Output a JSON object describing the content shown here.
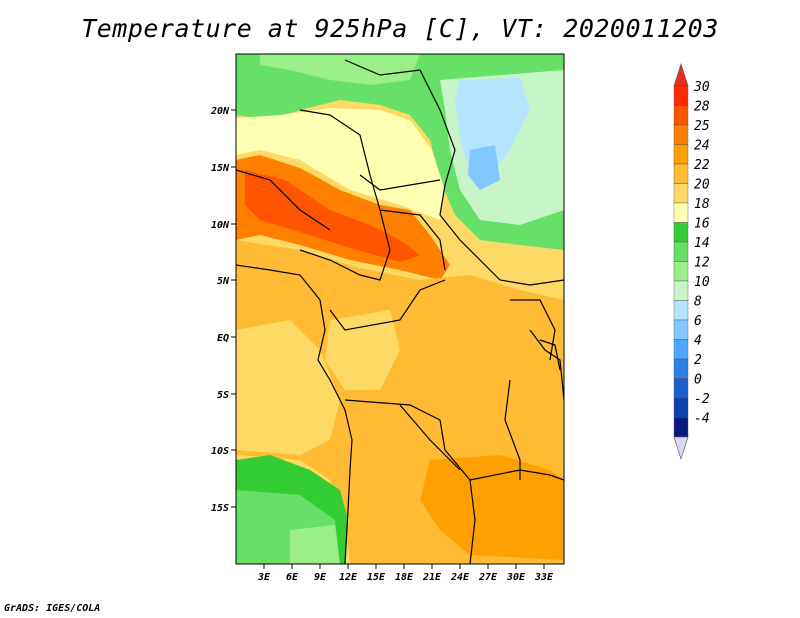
{
  "title": "Temperature at 925hPa [C], VT: 2020011203",
  "footer": "GrADS: IGES/COLA",
  "map": {
    "lon_range": [
      0,
      35
    ],
    "lat_range": [
      -20,
      25
    ],
    "lon_ticks": [
      "3E",
      "6E",
      "9E",
      "12E",
      "15E",
      "18E",
      "21E",
      "24E",
      "27E",
      "30E",
      "33E"
    ],
    "lat_ticks": [
      "20N",
      "15N",
      "10N",
      "5N",
      "EQ",
      "5S",
      "10S",
      "15S"
    ]
  },
  "colorbar": {
    "labels": [
      "30",
      "28",
      "25",
      "24",
      "22",
      "20",
      "18",
      "16",
      "14",
      "12",
      "10",
      "8",
      "6",
      "4",
      "2",
      "0",
      "-2",
      "-4"
    ],
    "colors": [
      "#ff2a00",
      "#ff5500",
      "#ff8000",
      "#ffa000",
      "#ffbb33",
      "#ffd966",
      "#ffffb3",
      "#33cc33",
      "#66e066",
      "#99ee88",
      "#c8f5c8",
      "#b3e5ff",
      "#80c8ff",
      "#4da6ff",
      "#2b7fe6",
      "#1a5fd0",
      "#0d3fb0",
      "#061a80"
    ],
    "top_cap_color": "#e6301a",
    "bottom_cap_color": "#d8d8f5"
  }
}
